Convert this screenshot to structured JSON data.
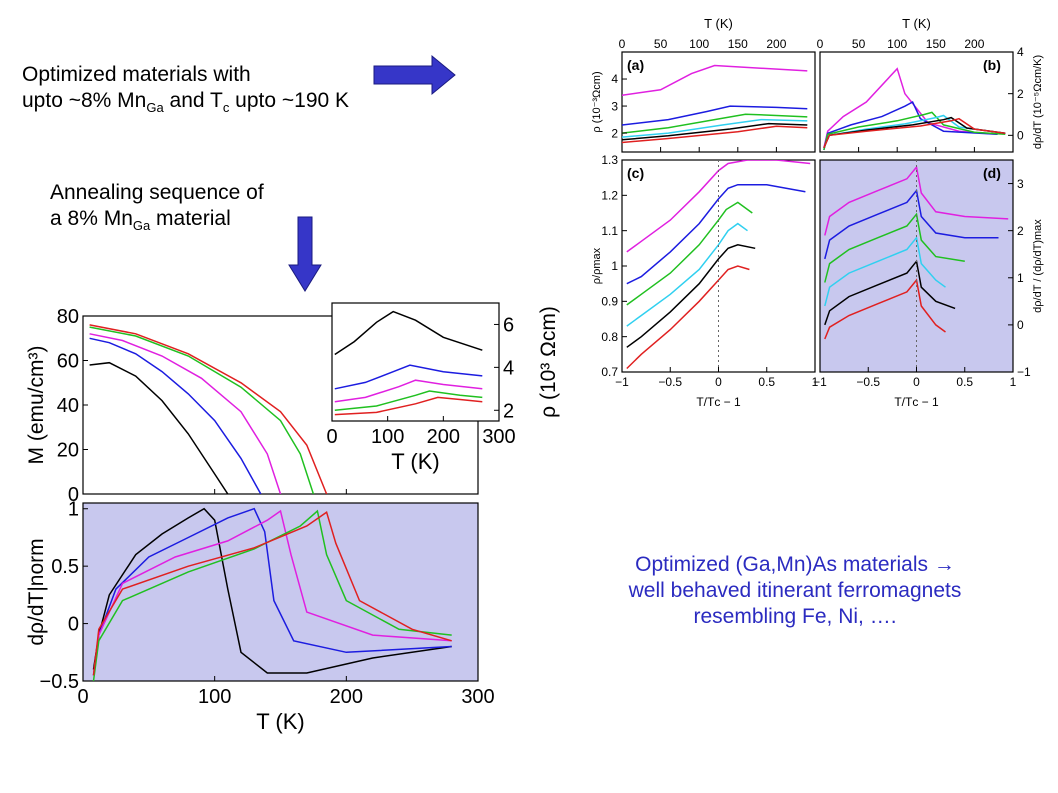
{
  "slide": {
    "text1": {
      "line1": "Optimized materials with",
      "line2_a": "upto ~8% Mn",
      "line2_sub": "Ga",
      "line2_b": " and T",
      "line2_sub2": "c",
      "line2_c": " upto ~190 K"
    },
    "text2": {
      "line1": "Annealing sequence of",
      "line2_a": "a 8% Mn",
      "line2_sub": "Ga",
      "line2_b": " material"
    },
    "conclusion": {
      "line1": "Optimized (Ga,Mn)As materials →",
      "line2": "well behaved itinerant ferromagnets",
      "line3": "resembling Fe, Ni, …."
    },
    "colors": {
      "arrow": "#3636c8",
      "text_blue": "#2b2bc0",
      "shade": "#c8c8ee"
    }
  },
  "chart_data": [
    {
      "id": "M_vs_T",
      "type": "line",
      "xlim": [
        0,
        300
      ],
      "ylim": [
        0,
        80
      ],
      "x_ticks": [
        "0",
        "100",
        "200",
        "300"
      ],
      "y_ticks": [
        "0",
        "20",
        "40",
        "60",
        "80"
      ],
      "ylabel": "M (emu/cm³)",
      "series": [
        {
          "color": "#000000",
          "x": [
            5,
            20,
            40,
            60,
            80,
            100,
            110
          ],
          "y": [
            58,
            59,
            53,
            42,
            27,
            9,
            0
          ]
        },
        {
          "color": "#1c1ce0",
          "x": [
            5,
            20,
            40,
            60,
            80,
            100,
            120,
            135
          ],
          "y": [
            70,
            68,
            63,
            55,
            45,
            33,
            16,
            0
          ]
        },
        {
          "color": "#e020e0",
          "x": [
            5,
            30,
            60,
            90,
            120,
            140,
            150
          ],
          "y": [
            72,
            69,
            62,
            52,
            37,
            18,
            0
          ]
        },
        {
          "color": "#20c020",
          "x": [
            5,
            40,
            80,
            120,
            150,
            165,
            175
          ],
          "y": [
            75,
            71,
            62,
            48,
            33,
            18,
            0
          ]
        },
        {
          "color": "#e02020",
          "x": [
            5,
            40,
            80,
            120,
            150,
            170,
            185
          ],
          "y": [
            76,
            72,
            63,
            50,
            37,
            22,
            0
          ]
        }
      ]
    },
    {
      "id": "rho_vs_T_inset",
      "type": "line",
      "xlim": [
        0,
        300
      ],
      "ylim": [
        1.5,
        7
      ],
      "x_ticks": [
        "0",
        "100",
        "200",
        "300"
      ],
      "y_ticks": [
        "2",
        "4",
        "6"
      ],
      "xlabel": "T  (K)",
      "ylabel": "ρ (10³ Ωcm)",
      "series": [
        {
          "color": "#000000",
          "x": [
            5,
            40,
            80,
            110,
            150,
            200,
            270
          ],
          "y": [
            4.6,
            5.2,
            6.1,
            6.6,
            6.2,
            5.4,
            4.8
          ]
        },
        {
          "color": "#1c1ce0",
          "x": [
            5,
            60,
            110,
            140,
            200,
            270
          ],
          "y": [
            3.0,
            3.3,
            3.8,
            4.1,
            3.8,
            3.6
          ]
        },
        {
          "color": "#e020e0",
          "x": [
            5,
            60,
            120,
            150,
            200,
            270
          ],
          "y": [
            2.4,
            2.6,
            3.1,
            3.4,
            3.2,
            3.0
          ]
        },
        {
          "color": "#20c020",
          "x": [
            5,
            80,
            150,
            175,
            230,
            270
          ],
          "y": [
            2.0,
            2.2,
            2.7,
            2.9,
            2.7,
            2.6
          ]
        },
        {
          "color": "#e02020",
          "x": [
            5,
            80,
            150,
            190,
            230,
            270
          ],
          "y": [
            1.8,
            1.9,
            2.3,
            2.6,
            2.5,
            2.4
          ]
        }
      ]
    },
    {
      "id": "drho_dT_norm",
      "type": "line",
      "xlim": [
        0,
        300
      ],
      "ylim": [
        -0.5,
        1.05
      ],
      "x_ticks": [
        "0",
        "100",
        "200",
        "300"
      ],
      "y_ticks": [
        "−0.5",
        "0",
        "0.5",
        "1"
      ],
      "xlabel": "T   (K)",
      "ylabel": "dρ/dT|norm",
      "series": [
        {
          "color": "#000000",
          "x": [
            8,
            12,
            20,
            40,
            60,
            80,
            92,
            100,
            110,
            120,
            140,
            170,
            220,
            280
          ],
          "y": [
            -0.4,
            -0.1,
            0.25,
            0.6,
            0.78,
            0.92,
            1.0,
            0.9,
            0.3,
            -0.25,
            -0.43,
            -0.43,
            -0.3,
            -0.2
          ]
        },
        {
          "color": "#1c1ce0",
          "x": [
            8,
            12,
            25,
            50,
            80,
            110,
            130,
            138,
            145,
            160,
            200,
            280
          ],
          "y": [
            -0.45,
            -0.1,
            0.3,
            0.58,
            0.75,
            0.92,
            1.0,
            0.8,
            0.2,
            -0.15,
            -0.25,
            -0.2
          ]
        },
        {
          "color": "#e020e0",
          "x": [
            8,
            12,
            30,
            70,
            110,
            140,
            150,
            158,
            170,
            220,
            280
          ],
          "y": [
            -0.45,
            -0.1,
            0.35,
            0.58,
            0.72,
            0.9,
            0.98,
            0.6,
            0.1,
            -0.1,
            -0.15
          ]
        },
        {
          "color": "#20c020",
          "x": [
            8,
            12,
            30,
            80,
            130,
            165,
            178,
            185,
            200,
            240,
            280
          ],
          "y": [
            -0.5,
            -0.15,
            0.2,
            0.45,
            0.65,
            0.85,
            0.98,
            0.6,
            0.2,
            -0.05,
            -0.1
          ]
        },
        {
          "color": "#e02020",
          "x": [
            8,
            12,
            30,
            80,
            130,
            170,
            185,
            192,
            210,
            250,
            280
          ],
          "y": [
            -0.45,
            -0.05,
            0.3,
            0.5,
            0.66,
            0.85,
            0.97,
            0.7,
            0.2,
            -0.05,
            -0.15
          ]
        }
      ]
    },
    {
      "id": "panel_a",
      "type": "line",
      "panel_label": "(a)",
      "xlim": [
        0,
        250
      ],
      "ylim": [
        1.3,
        5
      ],
      "x_ticks": [
        "0",
        "50",
        "100",
        "150",
        "200"
      ],
      "y_ticks": [
        "2",
        "3",
        "4"
      ],
      "top_xlabel": "T  (K)",
      "ylabel": "ρ   (10⁻³Ωcm)",
      "series": [
        {
          "color": "#e020e0",
          "x": [
            0,
            50,
            90,
            120,
            180,
            240
          ],
          "y": [
            3.4,
            3.6,
            4.2,
            4.5,
            4.4,
            4.3
          ]
        },
        {
          "color": "#1c1ce0",
          "x": [
            0,
            60,
            110,
            140,
            200,
            240
          ],
          "y": [
            2.3,
            2.5,
            2.8,
            3.0,
            2.95,
            2.9
          ]
        },
        {
          "color": "#20c020",
          "x": [
            0,
            60,
            120,
            160,
            200,
            240
          ],
          "y": [
            2.0,
            2.2,
            2.5,
            2.7,
            2.65,
            2.6
          ]
        },
        {
          "color": "#30d0f0",
          "x": [
            0,
            60,
            130,
            180,
            240
          ],
          "y": [
            1.85,
            2.0,
            2.3,
            2.5,
            2.45
          ]
        },
        {
          "color": "#000000",
          "x": [
            0,
            60,
            140,
            190,
            240
          ],
          "y": [
            1.75,
            1.9,
            2.15,
            2.35,
            2.3
          ]
        },
        {
          "color": "#e02020",
          "x": [
            0,
            60,
            150,
            200,
            240
          ],
          "y": [
            1.65,
            1.8,
            2.05,
            2.25,
            2.2
          ]
        }
      ]
    },
    {
      "id": "panel_b",
      "type": "line",
      "panel_label": "(b)",
      "xlim": [
        0,
        250
      ],
      "ylim": [
        -0.8,
        4
      ],
      "x_ticks": [
        "0",
        "50",
        "100",
        "150",
        "200"
      ],
      "y_ticks": [
        "0",
        "2",
        "4"
      ],
      "top_xlabel": "T  (K)",
      "ylabel": "dρ/dT   (10⁻⁵Ωcm/K)",
      "series": [
        {
          "color": "#e020e0",
          "x": [
            5,
            10,
            30,
            60,
            90,
            100,
            110,
            140,
            180,
            230
          ],
          "y": [
            -0.6,
            0.2,
            0.9,
            1.6,
            2.8,
            3.2,
            2.0,
            0.6,
            0.2,
            0.05
          ]
        },
        {
          "color": "#1c1ce0",
          "x": [
            5,
            10,
            40,
            80,
            110,
            120,
            130,
            160,
            230
          ],
          "y": [
            -0.7,
            0.1,
            0.5,
            0.9,
            1.4,
            1.6,
            0.8,
            0.2,
            0.05
          ]
        },
        {
          "color": "#20c020",
          "x": [
            5,
            10,
            50,
            100,
            135,
            145,
            160,
            200,
            240
          ],
          "y": [
            -0.7,
            0.05,
            0.4,
            0.7,
            1.0,
            1.1,
            0.5,
            0.15,
            0.05
          ]
        },
        {
          "color": "#30d0f0",
          "x": [
            5,
            12,
            60,
            110,
            150,
            160,
            180,
            240
          ],
          "y": [
            -0.6,
            0.0,
            0.3,
            0.55,
            0.85,
            0.95,
            0.4,
            0.1
          ]
        },
        {
          "color": "#000000",
          "x": [
            5,
            12,
            60,
            120,
            160,
            170,
            190,
            240
          ],
          "y": [
            -0.6,
            0.0,
            0.25,
            0.5,
            0.75,
            0.85,
            0.35,
            0.1
          ]
        },
        {
          "color": "#e02020",
          "x": [
            5,
            12,
            60,
            130,
            170,
            180,
            200,
            240
          ],
          "y": [
            -0.6,
            0.0,
            0.2,
            0.45,
            0.7,
            0.8,
            0.3,
            0.1
          ]
        }
      ]
    },
    {
      "id": "panel_c",
      "type": "line",
      "panel_label": "(c)",
      "xlim": [
        -1,
        1
      ],
      "ylim": [
        0.7,
        1.3
      ],
      "x_ticks": [
        "−1",
        "−0.5",
        "0",
        "0.5",
        "1"
      ],
      "y_ticks": [
        "0.7",
        "0.8",
        "0.9",
        "1",
        "1.1",
        "1.2",
        "1.3"
      ],
      "xlabel": "T/Tᴄ − 1",
      "ylabel": "ρ/ρmax",
      "series": [
        {
          "color": "#e020e0",
          "x": [
            -0.95,
            -0.8,
            -0.5,
            -0.2,
            0.0,
            0.1,
            0.3,
            0.6,
            0.95
          ],
          "y": [
            1.04,
            1.07,
            1.13,
            1.21,
            1.27,
            1.29,
            1.3,
            1.3,
            1.29
          ]
        },
        {
          "color": "#1c1ce0",
          "x": [
            -0.95,
            -0.8,
            -0.5,
            -0.2,
            0.0,
            0.1,
            0.2,
            0.5,
            0.9
          ],
          "y": [
            0.95,
            0.97,
            1.04,
            1.12,
            1.19,
            1.22,
            1.23,
            1.23,
            1.21
          ]
        },
        {
          "color": "#20c020",
          "x": [
            -0.95,
            -0.8,
            -0.5,
            -0.2,
            0.0,
            0.08,
            0.2,
            0.35
          ],
          "y": [
            0.89,
            0.92,
            0.98,
            1.06,
            1.13,
            1.16,
            1.18,
            1.15
          ]
        },
        {
          "color": "#30d0f0",
          "x": [
            -0.95,
            -0.8,
            -0.5,
            -0.2,
            0.0,
            0.1,
            0.2,
            0.3
          ],
          "y": [
            0.83,
            0.86,
            0.92,
            0.99,
            1.06,
            1.1,
            1.12,
            1.1
          ]
        },
        {
          "color": "#000000",
          "x": [
            -0.95,
            -0.8,
            -0.5,
            -0.2,
            0.0,
            0.1,
            0.2,
            0.38
          ],
          "y": [
            0.77,
            0.8,
            0.87,
            0.95,
            1.02,
            1.05,
            1.06,
            1.05
          ]
        },
        {
          "color": "#e02020",
          "x": [
            -0.95,
            -0.8,
            -0.5,
            -0.2,
            0.0,
            0.1,
            0.2,
            0.32
          ],
          "y": [
            0.71,
            0.75,
            0.82,
            0.9,
            0.96,
            0.99,
            1.0,
            0.99
          ]
        }
      ]
    },
    {
      "id": "panel_d",
      "type": "line",
      "panel_label": "(d)",
      "xlim": [
        -1,
        1
      ],
      "ylim": [
        -1,
        3.5
      ],
      "x_ticks": [
        "−1",
        "−0.5",
        "0",
        "0.5",
        "1"
      ],
      "y_ticks": [
        "−1",
        "0",
        "1",
        "2",
        "3"
      ],
      "xlabel": "T/Tᴄ − 1",
      "ylabel": "dρ/dT / (dρ/dT)max",
      "series": [
        {
          "color": "#e020e0",
          "x": [
            -0.95,
            -0.9,
            -0.7,
            -0.4,
            -0.1,
            0.0,
            0.05,
            0.2,
            0.5,
            0.95
          ],
          "y": [
            1.9,
            2.3,
            2.6,
            2.85,
            3.1,
            3.35,
            2.8,
            2.4,
            2.3,
            2.25
          ]
        },
        {
          "color": "#1c1ce0",
          "x": [
            -0.95,
            -0.9,
            -0.7,
            -0.4,
            -0.1,
            0.0,
            0.05,
            0.2,
            0.5,
            0.85
          ],
          "y": [
            1.4,
            1.8,
            2.1,
            2.35,
            2.6,
            2.85,
            2.3,
            1.95,
            1.85,
            1.85
          ]
        },
        {
          "color": "#20c020",
          "x": [
            -0.95,
            -0.9,
            -0.7,
            -0.4,
            -0.1,
            0.0,
            0.05,
            0.2,
            0.5
          ],
          "y": [
            0.9,
            1.3,
            1.6,
            1.85,
            2.1,
            2.35,
            1.8,
            1.45,
            1.35
          ]
        },
        {
          "color": "#30d0f0",
          "x": [
            -0.95,
            -0.9,
            -0.7,
            -0.4,
            -0.1,
            0.0,
            0.05,
            0.2,
            0.3
          ],
          "y": [
            0.4,
            0.8,
            1.1,
            1.35,
            1.6,
            1.85,
            1.3,
            0.95,
            0.8
          ]
        },
        {
          "color": "#000000",
          "x": [
            -0.95,
            -0.9,
            -0.7,
            -0.4,
            -0.1,
            0.0,
            0.05,
            0.2,
            0.4
          ],
          "y": [
            0.0,
            0.3,
            0.6,
            0.85,
            1.1,
            1.35,
            0.8,
            0.5,
            0.35
          ]
        },
        {
          "color": "#e02020",
          "x": [
            -0.95,
            -0.9,
            -0.7,
            -0.4,
            -0.1,
            0.0,
            0.05,
            0.2,
            0.3
          ],
          "y": [
            -0.3,
            -0.05,
            0.2,
            0.45,
            0.7,
            0.95,
            0.4,
            0.0,
            -0.15
          ]
        }
      ]
    }
  ]
}
